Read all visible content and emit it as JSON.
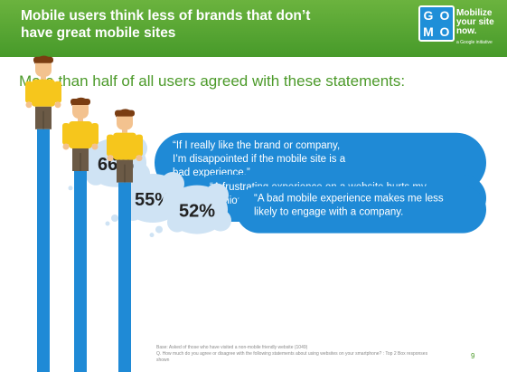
{
  "header": {
    "title_line1": "Mobile users think less of brands that don’t",
    "title_line2": "have great mobile sites"
  },
  "logo": {
    "letters": [
      "G",
      "O",
      "M",
      "O"
    ],
    "tagline_lines": [
      "Mobilize",
      "your site",
      "now."
    ],
    "by": "a Google initiative"
  },
  "subtitle": "More than half of all users agreed with these statements:",
  "chart_data": {
    "type": "bar",
    "orientation": "vertical",
    "title": "More than half of all users agreed with these statements:",
    "value_suffix": "%",
    "categories": [
      "“If I really like the brand or company, I’m disappointed if the mobile site is a bad experience.”",
      "“A frustrating experience on a website hurts my opinion of the brand overall.”",
      "“A bad mobile experience makes me less likely to engage with a company.”"
    ],
    "values": [
      66,
      55,
      52
    ],
    "labels": [
      "66%",
      "55%",
      "52%"
    ],
    "statements": [
      [
        "“If I really like the brand or company,",
        "I’m disappointed if the mobile site is a",
        "bad experience.”"
      ],
      [
        "“A frustrating experience on a website hurts my",
        "opinion of the brand overall.”"
      ],
      [
        "“A bad mobile experience makes me less",
        "likely to engage with a company."
      ]
    ],
    "bar_color": "#1f8ad6",
    "bubble_color": "#1f8ad6",
    "label_bubble_color": "#cfe3f4"
  },
  "footnotes": [
    "Base: Asked of those who have visited a non-mobile friendly website (1049)",
    "Q. How much do you agree or disagree with the following statements about using websites on your smartphone? : Top 2 Box responses",
    "shown"
  ],
  "page_number": "9"
}
